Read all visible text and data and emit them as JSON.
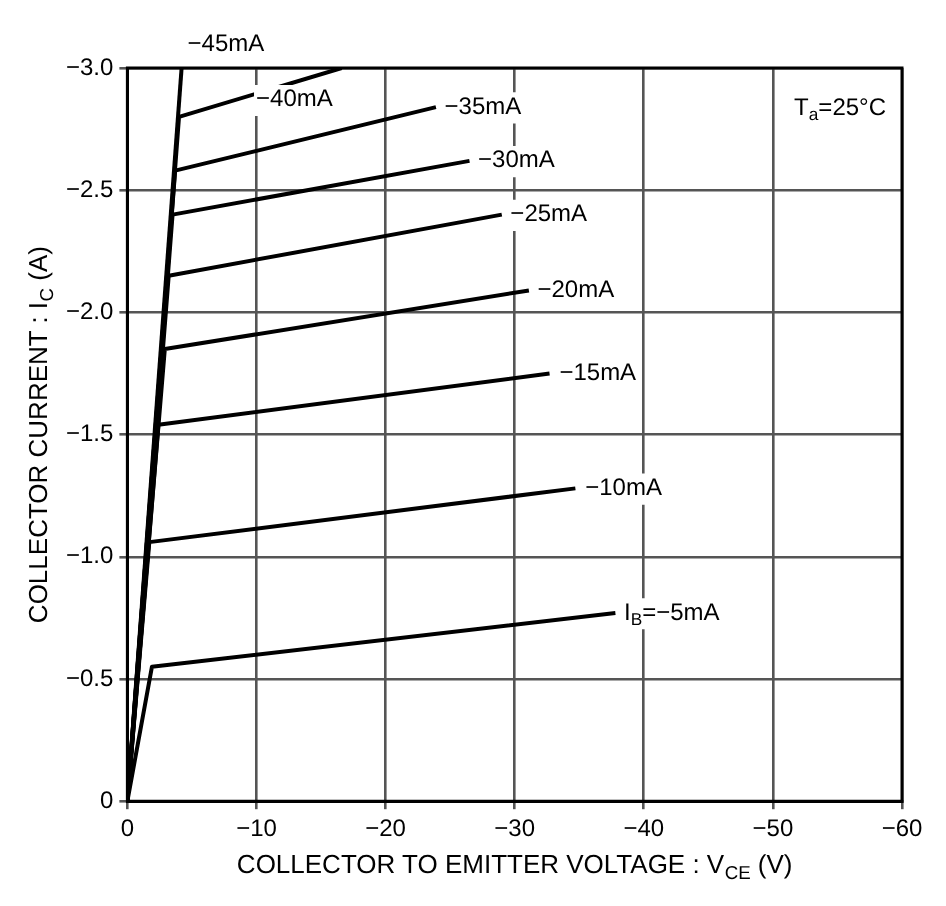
{
  "chart_data": {
    "type": "line",
    "xlabel": "COLLECTOR TO EMITTER VOLTAGE : V$_{CE}$ (V)",
    "ylabel": "COLLECTOR CURRENT : I$_{C}$ (A)",
    "xlim": [
      0,
      -60
    ],
    "xticks": [
      0,
      -10,
      -20,
      -30,
      -40,
      -50,
      -60
    ],
    "ylim": [
      0,
      -3.0
    ],
    "yticks": [
      0,
      {
        "value": -0.5,
        "label": "−0.5"
      },
      {
        "value": -1.0,
        "label": "−1.0"
      },
      {
        "value": -1.5,
        "label": "−1.5"
      },
      {
        "value": -2.0,
        "label": "−2.0"
      },
      {
        "value": -2.5,
        "label": "−2.5"
      },
      {
        "value": -3.0,
        "label": "−3.0"
      }
    ],
    "grid": true,
    "legend": false,
    "marker": "none",
    "line_style": "solid",
    "series": [
      {
        "color": "#000000",
        "x": [
          0,
          -1.9,
          -37.8
        ],
        "values": [
          0,
          -0.55,
          -0.77
        ]
      },
      {
        "color": "#000000",
        "x": [
          0,
          -1.7,
          -34.7
        ],
        "values": [
          0,
          -1.06,
          -1.28
        ]
      },
      {
        "color": "#000000",
        "x": [
          0,
          -2.4,
          -32.7
        ],
        "values": [
          0,
          -1.54,
          -1.75
        ]
      },
      {
        "color": "#000000",
        "x": [
          0,
          -2.9,
          -31.1
        ],
        "values": [
          0,
          -1.85,
          -2.09
        ]
      },
      {
        "color": "#000000",
        "x": [
          0,
          -3.2,
          -29.0
        ],
        "values": [
          0,
          -2.15,
          -2.4
        ]
      },
      {
        "color": "#000000",
        "x": [
          0,
          -3.5,
          -26.5
        ],
        "values": [
          0,
          -2.4,
          -2.62
        ]
      },
      {
        "color": "#000000",
        "x": [
          0,
          -3.7,
          -23.9
        ],
        "values": [
          0,
          -2.58,
          -2.84
        ]
      },
      {
        "color": "#000000",
        "x": [
          0,
          -4.0,
          -16.6
        ],
        "values": [
          0,
          -2.8,
          -3.0
        ]
      },
      {
        "color": "#000000",
        "x": [
          0,
          -4.2
        ],
        "values": [
          0,
          -3.0
        ]
      }
    ],
    "annotations": [
      {
        "text": "I$_{B}$=−5mA",
        "x": -38,
        "y": -0.77
      },
      {
        "text": "−10mA",
        "x": -35,
        "y": -1.28
      },
      {
        "text": "−15mA",
        "x": -33,
        "y": -1.75
      },
      {
        "text": "−20mA",
        "x": -31.3,
        "y": -2.09
      },
      {
        "text": "−25mA",
        "x": -29.2,
        "y": -2.4
      },
      {
        "text": "−30mA",
        "x": -26.7,
        "y": -2.62
      },
      {
        "text": "−35mA",
        "x": -24.1,
        "y": -2.84
      },
      {
        "text": "−40mA",
        "x": -9.5,
        "y": -2.87
      },
      {
        "text": "−45mA",
        "x": -4.2,
        "y": -3.0
      },
      "T$_{a}$=25°C"
    ]
  }
}
